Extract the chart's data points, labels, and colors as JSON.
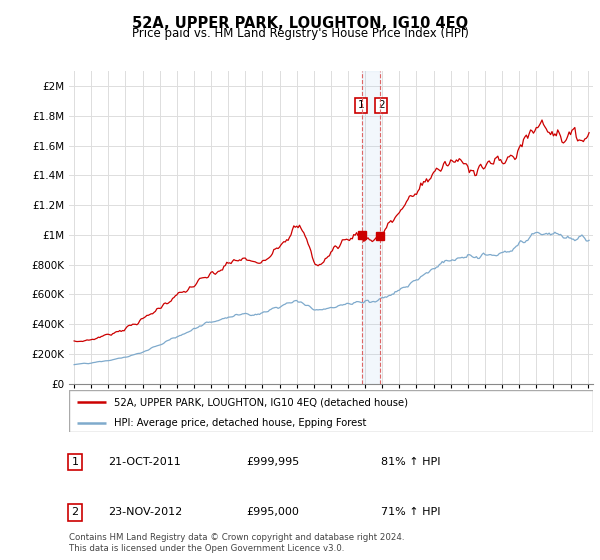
{
  "title": "52A, UPPER PARK, LOUGHTON, IG10 4EQ",
  "subtitle": "Price paid vs. HM Land Registry's House Price Index (HPI)",
  "legend_line1": "52A, UPPER PARK, LOUGHTON, IG10 4EQ (detached house)",
  "legend_line2": "HPI: Average price, detached house, Epping Forest",
  "footnote": "Contains HM Land Registry data © Crown copyright and database right 2024.\nThis data is licensed under the Open Government Licence v3.0.",
  "annotation1_date": "21-OCT-2011",
  "annotation1_price": "£999,995",
  "annotation1_hpi": "81% ↑ HPI",
  "annotation2_date": "23-NOV-2012",
  "annotation2_price": "£995,000",
  "annotation2_hpi": "71% ↑ HPI",
  "sale1_x": 2011.79,
  "sale1_y": 999995,
  "sale2_x": 2012.89,
  "sale2_y": 995000,
  "red_color": "#cc0000",
  "blue_color": "#7faacc",
  "vspan_color": "#ddeeff",
  "vline_color": "#dd6666",
  "grid_color": "#dddddd",
  "ylim": [
    0,
    2100000
  ],
  "xlim": [
    1994.7,
    2025.3
  ]
}
